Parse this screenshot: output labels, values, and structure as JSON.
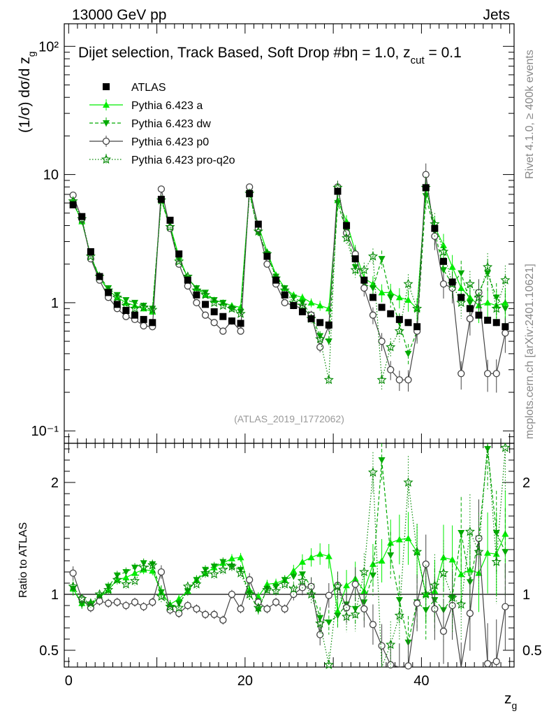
{
  "header": {
    "left": "13000 GeV pp",
    "right": "Jets"
  },
  "side": {
    "rivet": "Rivet 4.1.0, ≥ 400k events",
    "mcplots": "mcplots.cern.ch [arXiv:2401.10621]"
  },
  "chart_data": {
    "type": "scatter",
    "title": "Dijet selection, Track Based, Soft Drop #b",
    "title_suffix": "η = 1.0, z",
    "title_sub": "cut",
    "title_end": " = 0.1",
    "xlabel": "z",
    "xlabel_sub": "g",
    "ylabel": "(1/σ) dσ/d z",
    "ylabel_sub": "g",
    "ratio_ylabel": "Ratio to ATLAS",
    "watermark": "(ATLAS_2019_I1772062)",
    "x_range": [
      -0.5,
      50.5
    ],
    "y_range_log": [
      0.08,
      150
    ],
    "ratio_range": [
      0.35,
      2.35
    ],
    "x_ticks": [
      "0",
      "20",
      "40"
    ],
    "y_ticks": [
      "10⁻¹",
      "1",
      "10",
      "10²"
    ],
    "ratio_ticks": [
      "0.5",
      "1",
      "2"
    ],
    "x": [
      0.5,
      1.5,
      2.5,
      3.5,
      4.5,
      5.5,
      6.5,
      7.5,
      8.5,
      9.5,
      10.5,
      11.5,
      12.5,
      13.5,
      14.5,
      15.5,
      16.5,
      17.5,
      18.5,
      19.5,
      20.5,
      21.5,
      22.5,
      23.5,
      24.5,
      25.5,
      26.5,
      27.5,
      28.5,
      29.5,
      30.5,
      31.5,
      32.5,
      33.5,
      34.5,
      35.5,
      36.5,
      37.5,
      38.5,
      39.5,
      40.5,
      41.5,
      42.5,
      43.5,
      44.5,
      45.5,
      46.5,
      47.5,
      48.5,
      49.5
    ],
    "series": [
      {
        "name": "ATLAS",
        "color": "#000000",
        "marker": "square",
        "values": [
          5.8,
          4.7,
          2.5,
          1.6,
          1.2,
          0.97,
          0.87,
          0.8,
          0.74,
          0.7,
          6.4,
          4.4,
          2.4,
          1.5,
          1.15,
          0.97,
          0.85,
          0.78,
          0.72,
          0.69,
          7.1,
          4.1,
          2.3,
          1.5,
          1.15,
          0.95,
          0.85,
          0.75,
          0.7,
          0.67,
          7.4,
          4.0,
          2.2,
          1.5,
          1.1,
          0.92,
          0.82,
          0.74,
          0.7,
          0.65,
          7.9,
          3.8,
          2.1,
          1.45,
          1.1,
          0.9,
          0.8,
          0.73,
          0.7,
          0.65
        ],
        "ratio": []
      },
      {
        "name": "Pythia 6.423 a",
        "color": "#00ee00",
        "marker": "triangle-up",
        "values": [
          6.1,
          4.3,
          2.3,
          1.55,
          1.25,
          1.1,
          1.0,
          0.95,
          0.9,
          0.85,
          6.5,
          4.0,
          2.3,
          1.55,
          1.3,
          1.15,
          1.05,
          1.0,
          0.95,
          0.92,
          7.4,
          4.0,
          2.5,
          1.65,
          1.3,
          1.15,
          1.1,
          1.0,
          0.95,
          0.9,
          6.3,
          4.3,
          2.5,
          1.55,
          1.4,
          1.2,
          1.2,
          1.1,
          1.05,
          0.9,
          7.9,
          3.9,
          2.8,
          1.9,
          1.3,
          1.1,
          0.95,
          1.0,
          0.95,
          1.0
        ],
        "ratio": [
          1.05,
          0.92,
          0.92,
          0.97,
          1.04,
          1.13,
          1.15,
          1.19,
          1.22,
          1.21,
          1.02,
          0.91,
          0.96,
          1.03,
          1.13,
          1.19,
          1.24,
          1.28,
          1.32,
          1.33,
          1.04,
          0.98,
          1.09,
          1.1,
          1.13,
          1.21,
          1.29,
          1.33,
          1.36,
          1.34,
          0.85,
          1.08,
          1.14,
          1.03,
          1.27,
          1.3,
          1.46,
          1.49,
          1.5,
          1.38,
          1.0,
          1.03,
          1.33,
          1.31,
          1.18,
          1.22,
          1.19,
          1.37,
          1.36,
          1.54
        ]
      },
      {
        "name": "Pythia 6.423 dw",
        "color": "#00aa00",
        "marker": "triangle-down",
        "values": [
          6.0,
          4.3,
          2.3,
          1.6,
          1.3,
          1.15,
          1.05,
          1.0,
          0.95,
          0.9,
          6.4,
          3.8,
          2.2,
          1.55,
          1.3,
          1.2,
          1.05,
          1.0,
          0.9,
          0.85,
          7.2,
          3.5,
          2.4,
          1.6,
          1.3,
          1.1,
          1.0,
          0.8,
          0.55,
          0.5,
          6.0,
          3.6,
          1.9,
          1.4,
          1.3,
          2.2,
          1.1,
          0.7,
          0.4,
          0.6,
          6.8,
          3.6,
          1.8,
          1.4,
          1.7,
          1.0,
          1.2,
          1.7,
          1.1,
          0.9
        ],
        "ratio": [
          1.05,
          0.91,
          0.9,
          0.98,
          1.07,
          1.17,
          1.2,
          1.24,
          1.28,
          1.27,
          1.02,
          0.87,
          0.92,
          1.03,
          1.13,
          1.22,
          1.25,
          1.29,
          1.25,
          1.22,
          1.01,
          0.86,
          1.05,
          1.07,
          1.13,
          1.16,
          1.18,
          1.07,
          0.79,
          0.75,
          0.81,
          0.91,
          0.87,
          0.93,
          1.17,
          2.2,
          1.35,
          0.95,
          0.57,
          0.93,
          0.86,
          0.95,
          0.86,
          0.97,
          1.55,
          1.11,
          1.5,
          2.3,
          1.55,
          1.38
        ]
      },
      {
        "name": "Pythia 6.423 p0",
        "color": "#444444",
        "marker": "circle-open",
        "values": [
          6.9,
          4.5,
          2.2,
          1.5,
          1.1,
          0.9,
          0.78,
          0.74,
          0.66,
          0.65,
          7.7,
          3.8,
          2.0,
          1.35,
          1.0,
          0.8,
          0.7,
          0.6,
          0.72,
          0.6,
          8.0,
          3.8,
          2.0,
          1.4,
          1.0,
          0.95,
          0.9,
          0.8,
          0.45,
          0.66,
          8.0,
          3.5,
          2.4,
          1.3,
          0.8,
          0.5,
          0.3,
          0.25,
          0.25,
          0.6,
          10.0,
          3.3,
          1.4,
          1.3,
          0.28,
          0.75,
          1.2,
          0.28,
          0.28,
          0.58
        ],
        "ratio": [
          1.19,
          0.96,
          0.88,
          0.94,
          0.92,
          0.93,
          0.9,
          0.93,
          0.89,
          0.93,
          1.2,
          0.86,
          0.83,
          0.9,
          0.87,
          0.82,
          0.82,
          0.77,
          1.0,
          0.87,
          1.13,
          0.93,
          0.87,
          0.93,
          0.87,
          1.0,
          1.06,
          1.07,
          0.64,
          0.99,
          1.08,
          0.88,
          1.09,
          0.87,
          0.73,
          0.54,
          0.37,
          0.34,
          0.36,
          0.92,
          1.27,
          0.87,
          0.67,
          0.9,
          0.25,
          0.83,
          1.5,
          0.38,
          0.4,
          0.89
        ]
      },
      {
        "name": "Pythia 6.423 pro-q2o",
        "color": "#008800",
        "marker": "star",
        "values": [
          6.2,
          4.5,
          2.3,
          1.6,
          1.25,
          1.1,
          0.95,
          0.9,
          0.92,
          0.88,
          6.3,
          3.9,
          2.1,
          1.6,
          1.25,
          1.15,
          1.0,
          0.95,
          0.9,
          0.82,
          7.1,
          3.6,
          2.4,
          1.55,
          1.25,
          1.0,
          0.95,
          0.75,
          0.52,
          0.25,
          7.9,
          3.2,
          1.8,
          1.8,
          2.3,
          0.25,
          0.45,
          0.6,
          1.4,
          0.9,
          7.9,
          4.1,
          2.5,
          1.4,
          1.0,
          1.4,
          1.1,
          1.9,
          0.9,
          1.5
        ],
        "ratio": [
          1.07,
          0.96,
          0.92,
          1.0,
          1.04,
          1.13,
          1.09,
          1.12,
          1.24,
          1.26,
          0.98,
          0.89,
          0.88,
          1.07,
          1.09,
          1.19,
          1.18,
          1.22,
          1.25,
          1.19,
          1.0,
          0.88,
          1.04,
          1.03,
          1.09,
          1.05,
          1.12,
          1.0,
          0.74,
          0.37,
          1.07,
          0.8,
          0.82,
          1.2,
          2.09,
          0.27,
          0.55,
          0.81,
          2.0,
          1.38,
          1.0,
          1.08,
          1.19,
          0.97,
          0.91,
          1.56,
          1.38,
          2.6,
          1.29,
          2.31
        ]
      }
    ]
  }
}
